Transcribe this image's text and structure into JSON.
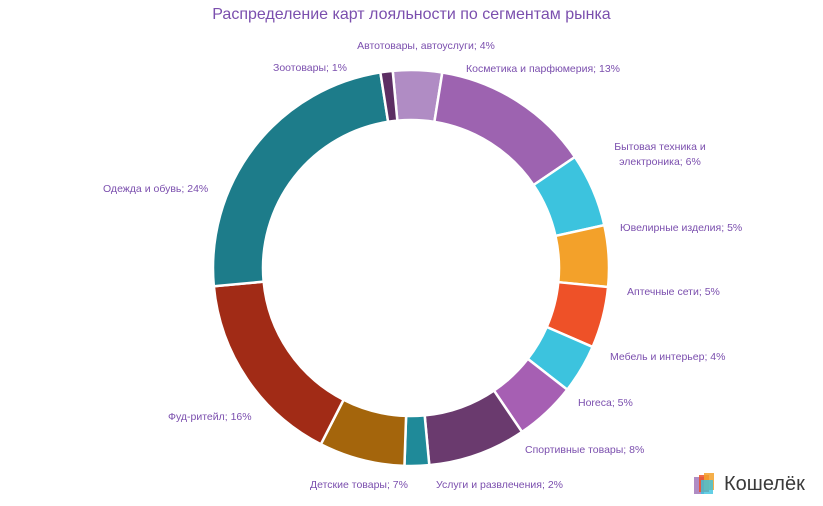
{
  "brand": {
    "name": "Кошелёк"
  },
  "chart_data": {
    "type": "pie",
    "donut": true,
    "title": "Распределение карт лояльности по сегментам рынка",
    "slices": [
      {
        "label": "Автотовары, автоуслуги; 4%",
        "name": "Автотовары, автоуслуги",
        "value": 4,
        "color": "#b08cc4"
      },
      {
        "label": "Косметика и парфюмерия; 13%",
        "name": "Косметика и парфюмерия",
        "value": 13,
        "color": "#9d63b0"
      },
      {
        "label": "Бытовая техника и|электроника; 6%",
        "name": "Бытовая техника и электроника",
        "value": 6,
        "color": "#3cc3de"
      },
      {
        "label": "Ювелирные изделия; 5%",
        "name": "Ювелирные изделия",
        "value": 5,
        "color": "#f3a12a"
      },
      {
        "label": "Аптечные сети; 5%",
        "name": "Аптечные сети",
        "value": 5,
        "color": "#ee5128"
      },
      {
        "label": "Мебель и интерьер; 4%",
        "name": "Мебель и интерьер",
        "value": 4,
        "color": "#3cc3de"
      },
      {
        "label": "Horeca; 5%",
        "name": "Horeca",
        "value": 5,
        "color": "#a65fb3"
      },
      {
        "label": "Спортивные товары; 8%",
        "name": "Спортивные товары",
        "value": 8,
        "color": "#6a3a6e"
      },
      {
        "label": "Услуги и развлечения; 2%",
        "name": "Услуги и развлечения",
        "value": 2,
        "color": "#1f8a99"
      },
      {
        "label": "Детские товары; 7%",
        "name": "Детские товары",
        "value": 7,
        "color": "#a4650c"
      },
      {
        "label": "Фуд-ритейл; 16%",
        "name": "Фуд-ритейл",
        "value": 16,
        "color": "#a12b16"
      },
      {
        "label": "Одежда и обувь; 24%",
        "name": "Одежда и обувь",
        "value": 24,
        "color": "#1d7c8a"
      },
      {
        "label": "Зоотовары; 1%",
        "name": "Зоотовары",
        "value": 1,
        "color": "#5c2e63"
      }
    ]
  }
}
